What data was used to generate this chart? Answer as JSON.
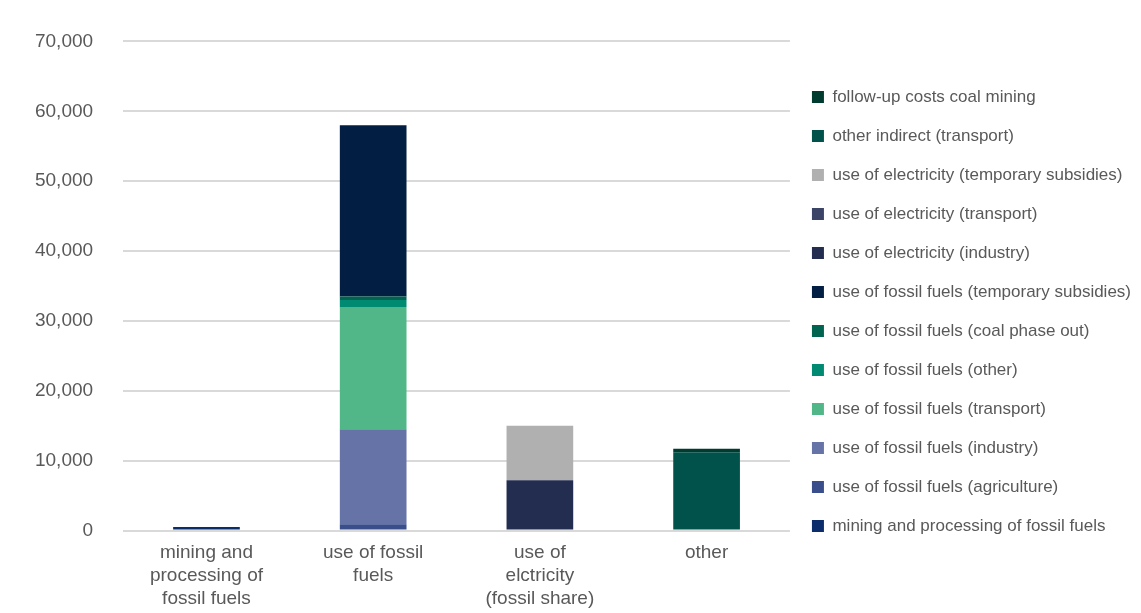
{
  "chart_data": {
    "type": "bar",
    "stacked": true,
    "categories": [
      "mining and processing of fossil fuels",
      "use of fossil fuels",
      "use of elctricity (fossil share)",
      "other"
    ],
    "series": [
      {
        "name": "mining and processing of fossil fuels",
        "color": "#0b2d6b",
        "values": [
          500,
          null,
          null,
          null
        ]
      },
      {
        "name": "use of fossil fuels (agriculture)",
        "color": "#3a4e8c",
        "values": [
          null,
          900,
          null,
          null
        ]
      },
      {
        "name": "use of fossil fuels (industry)",
        "color": "#6673a6",
        "values": [
          null,
          13600,
          null,
          null
        ]
      },
      {
        "name": "use of fossil fuels (transport)",
        "color": "#52b788",
        "values": [
          null,
          17500,
          null,
          null
        ]
      },
      {
        "name": "use of fossil fuels (other)",
        "color": "#008a72",
        "values": [
          null,
          1000,
          null,
          null
        ]
      },
      {
        "name": "use of fossil fuels (coal phase out)",
        "color": "#006450",
        "values": [
          null,
          500,
          null,
          null
        ]
      },
      {
        "name": "use of fossil fuels (temporary subsidies)",
        "color": "#021e42",
        "values": [
          null,
          24500,
          null,
          null
        ]
      },
      {
        "name": "use of electricity (industry)",
        "color": "#222d50",
        "values": [
          null,
          null,
          7200,
          null
        ]
      },
      {
        "name": "use of electricity (transport)",
        "color": "#3b4466",
        "values": [
          null,
          null,
          null,
          null
        ]
      },
      {
        "name": "use of electricity (temporary subsidies)",
        "color": "#b0b0b0",
        "values": [
          null,
          null,
          7800,
          null
        ]
      },
      {
        "name": "other indirect (transport)",
        "color": "#00524a",
        "values": [
          null,
          null,
          null,
          11200
        ]
      },
      {
        "name": "follow-up costs coal mining",
        "color": "#013b30",
        "values": [
          null,
          null,
          null,
          500
        ]
      }
    ],
    "ylim": [
      0,
      70000
    ],
    "yticks": [
      0,
      {
        "value": 10000,
        "label": "10,000"
      },
      {
        "value": 20000,
        "label": "20,000"
      },
      {
        "value": 30000,
        "label": "30,000"
      },
      {
        "value": 40000,
        "label": "40,000"
      },
      {
        "value": 50000,
        "label": "50,000"
      },
      {
        "value": 60000,
        "label": "60,000"
      },
      {
        "value": 70000,
        "label": "70,000"
      }
    ],
    "grid": "y",
    "legend": "right"
  }
}
